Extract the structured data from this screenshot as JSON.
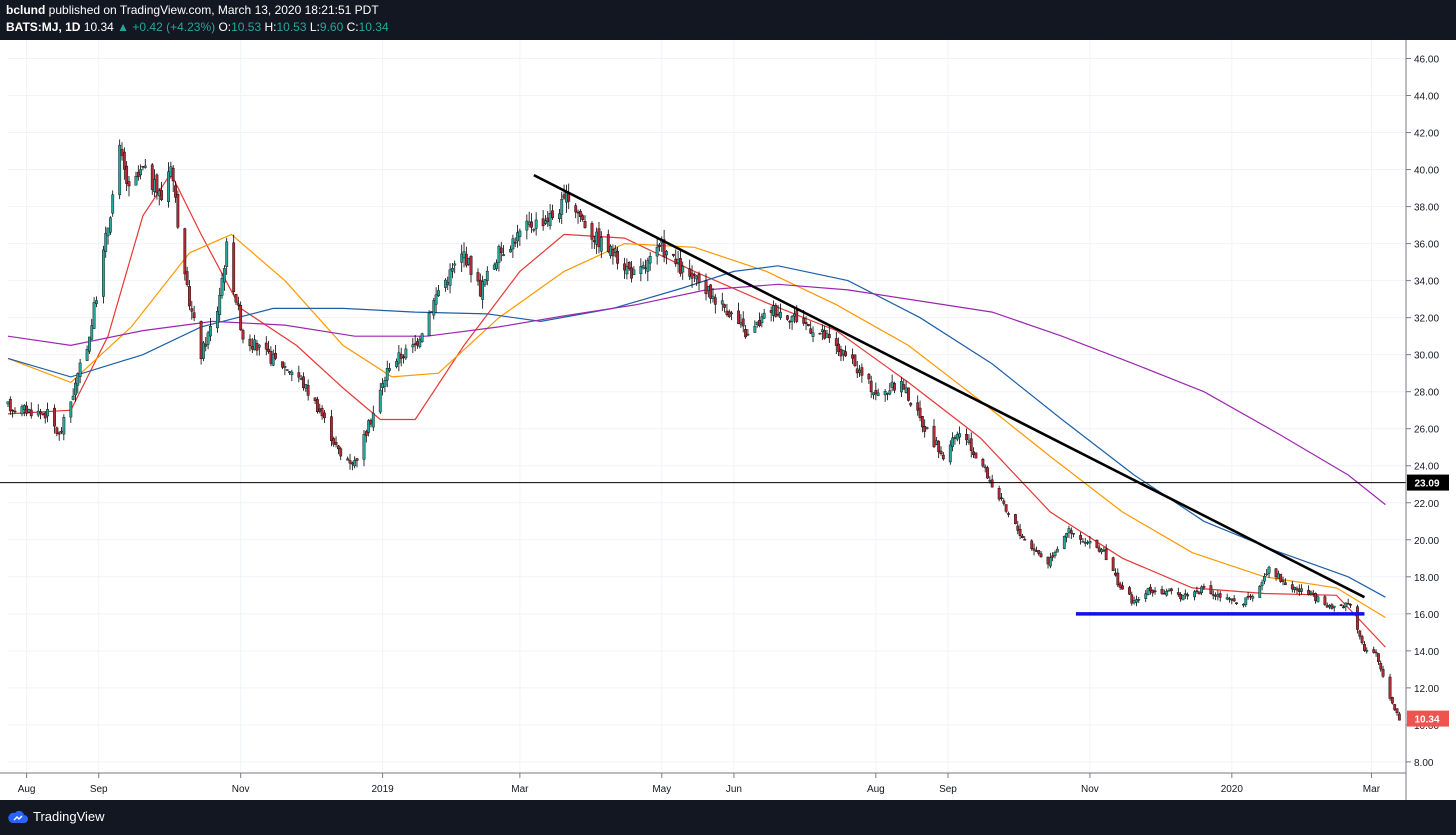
{
  "header": {
    "author": "bclund",
    "published_text": "published on TradingView.com, March 13, 2020 18:21:51 PDT",
    "symbol": "BATS:MJ, 1D",
    "last": "10.34",
    "change": "▲ +0.42 (+4.23%)",
    "o_label": "O:",
    "o_value": "10.53",
    "h_label": "H:",
    "h_value": "10.53",
    "l_label": "L:",
    "l_value": "9.60",
    "c_label": "C:",
    "c_value": "10.34"
  },
  "footer": {
    "brand": "TradingView",
    "logo_icon": "tradingview-cloud-icon"
  },
  "colors": {
    "up": "#26a69a",
    "down": "#ef5350",
    "candle_up": "#26a69a",
    "candle_down": "#b22833",
    "sma20": "#e53935",
    "sma50": "#ff9800",
    "sma100": "#1e5fa8",
    "sma200": "#9c27b0",
    "trendline": "#000000",
    "support": "#1010e8",
    "hline": "#000000",
    "price_badge": "#ef5350"
  },
  "chart_data": {
    "type": "candlestick",
    "symbol": "BATS:MJ",
    "interval": "1D",
    "ylim": [
      7.4,
      47.0
    ],
    "y_ticks": [
      "8.00",
      "10.00",
      "12.00",
      "14.00",
      "16.00",
      "18.00",
      "20.00",
      "22.00",
      "24.00",
      "26.00",
      "28.00",
      "30.00",
      "32.00",
      "34.00",
      "36.00",
      "38.00",
      "40.00",
      "42.00",
      "44.00",
      "46.00"
    ],
    "x_ticks": [
      "Aug",
      "Sep",
      "Nov",
      "2019",
      "Mar",
      "May",
      "Jun",
      "Aug",
      "Sep",
      "Nov",
      "2020",
      "Mar"
    ],
    "grid": true,
    "price_path": [
      [
        "2018-07-24",
        27.2
      ],
      [
        "2018-08-10",
        26.8
      ],
      [
        "2018-08-15",
        25.6
      ],
      [
        "2018-08-20",
        27.5
      ],
      [
        "2018-08-28",
        31.0
      ],
      [
        "2018-09-05",
        37.0
      ],
      [
        "2018-09-10",
        41.0
      ],
      [
        "2018-09-14",
        38.8
      ],
      [
        "2018-09-20",
        40.0
      ],
      [
        "2018-09-28",
        38.5
      ],
      [
        "2018-10-02",
        40.5
      ],
      [
        "2018-10-08",
        34.0
      ],
      [
        "2018-10-15",
        30.0
      ],
      [
        "2018-10-22",
        32.5
      ],
      [
        "2018-10-26",
        35.8
      ],
      [
        "2018-11-02",
        31.0
      ],
      [
        "2018-11-12",
        30.0
      ],
      [
        "2018-11-25",
        29.0
      ],
      [
        "2018-12-05",
        27.0
      ],
      [
        "2018-12-14",
        24.5
      ],
      [
        "2018-12-20",
        24.2
      ],
      [
        "2018-12-27",
        26.5
      ],
      [
        "2019-01-04",
        29.5
      ],
      [
        "2019-01-15",
        30.5
      ],
      [
        "2019-01-25",
        33.5
      ],
      [
        "2019-02-05",
        35.5
      ],
      [
        "2019-02-12",
        33.5
      ],
      [
        "2019-02-20",
        35.5
      ],
      [
        "2019-03-05",
        37.0
      ],
      [
        "2019-03-15",
        37.5
      ],
      [
        "2019-03-22",
        38.5
      ],
      [
        "2019-04-01",
        36.5
      ],
      [
        "2019-04-10",
        35.5
      ],
      [
        "2019-04-20",
        34.2
      ],
      [
        "2019-05-01",
        35.8
      ],
      [
        "2019-05-10",
        34.5
      ],
      [
        "2019-05-20",
        33.5
      ],
      [
        "2019-05-29",
        32.5
      ],
      [
        "2019-06-07",
        31.0
      ],
      [
        "2019-06-17",
        32.5
      ],
      [
        "2019-06-28",
        32.0
      ],
      [
        "2019-07-10",
        31.0
      ],
      [
        "2019-07-22",
        29.5
      ],
      [
        "2019-08-02",
        27.8
      ],
      [
        "2019-08-12",
        28.5
      ],
      [
        "2019-08-20",
        26.5
      ],
      [
        "2019-08-30",
        24.5
      ],
      [
        "2019-09-06",
        25.8
      ],
      [
        "2019-09-16",
        24.0
      ],
      [
        "2019-09-26",
        21.5
      ],
      [
        "2019-10-04",
        20.0
      ],
      [
        "2019-10-14",
        18.8
      ],
      [
        "2019-10-22",
        20.5
      ],
      [
        "2019-10-30",
        19.8
      ],
      [
        "2019-11-06",
        19.5
      ],
      [
        "2019-11-14",
        17.5
      ],
      [
        "2019-11-20",
        16.6
      ],
      [
        "2019-11-27",
        17.3
      ],
      [
        "2019-12-10",
        17.0
      ],
      [
        "2019-12-20",
        17.3
      ],
      [
        "2020-01-02",
        16.6
      ],
      [
        "2020-01-10",
        16.8
      ],
      [
        "2020-01-17",
        18.6
      ],
      [
        "2020-01-24",
        17.6
      ],
      [
        "2020-02-04",
        17.0
      ],
      [
        "2020-02-12",
        16.3
      ],
      [
        "2020-02-21",
        16.6
      ],
      [
        "2020-02-27",
        14.0
      ],
      [
        "2020-03-03",
        13.8
      ],
      [
        "2020-03-09",
        11.5
      ],
      [
        "2020-03-13",
        10.34
      ]
    ],
    "moving_averages": [
      {
        "color": "#e53935",
        "points": [
          [
            "2018-07-24",
            26.8
          ],
          [
            "2018-08-20",
            27.0
          ],
          [
            "2018-09-05",
            31.0
          ],
          [
            "2018-09-20",
            37.5
          ],
          [
            "2018-10-02",
            39.8
          ],
          [
            "2018-10-15",
            36.5
          ],
          [
            "2018-11-01",
            32.5
          ],
          [
            "2018-11-25",
            30.5
          ],
          [
            "2018-12-15",
            28.2
          ],
          [
            "2018-12-31",
            26.5
          ],
          [
            "2019-01-15",
            26.5
          ],
          [
            "2019-02-05",
            30.5
          ],
          [
            "2019-03-01",
            34.5
          ],
          [
            "2019-03-20",
            36.5
          ],
          [
            "2019-04-15",
            36.3
          ],
          [
            "2019-05-15",
            34.5
          ],
          [
            "2019-06-15",
            32.8
          ],
          [
            "2019-07-15",
            31.3
          ],
          [
            "2019-08-15",
            28.5
          ],
          [
            "2019-09-15",
            25.5
          ],
          [
            "2019-10-15",
            21.5
          ],
          [
            "2019-11-15",
            19.0
          ],
          [
            "2019-12-15",
            17.4
          ],
          [
            "2020-01-15",
            17.1
          ],
          [
            "2020-02-15",
            17.0
          ],
          [
            "2020-03-07",
            14.2
          ]
        ]
      },
      {
        "color": "#ff9800",
        "points": [
          [
            "2018-07-24",
            29.8
          ],
          [
            "2018-08-20",
            28.5
          ],
          [
            "2018-09-15",
            31.5
          ],
          [
            "2018-10-10",
            35.5
          ],
          [
            "2018-10-28",
            36.5
          ],
          [
            "2018-11-20",
            34.0
          ],
          [
            "2018-12-15",
            30.5
          ],
          [
            "2019-01-05",
            28.8
          ],
          [
            "2019-01-25",
            29.0
          ],
          [
            "2019-02-20",
            32.0
          ],
          [
            "2019-03-20",
            34.5
          ],
          [
            "2019-04-15",
            36.0
          ],
          [
            "2019-05-15",
            35.8
          ],
          [
            "2019-06-15",
            34.5
          ],
          [
            "2019-07-15",
            32.7
          ],
          [
            "2019-08-15",
            30.5
          ],
          [
            "2019-09-15",
            27.5
          ],
          [
            "2019-10-15",
            24.5
          ],
          [
            "2019-11-15",
            21.5
          ],
          [
            "2019-12-15",
            19.3
          ],
          [
            "2020-01-15",
            18.0
          ],
          [
            "2020-02-15",
            17.4
          ],
          [
            "2020-03-07",
            15.8
          ]
        ]
      },
      {
        "color": "#1e5fa8",
        "points": [
          [
            "2018-07-24",
            29.8
          ],
          [
            "2018-08-20",
            28.8
          ],
          [
            "2018-09-20",
            30.0
          ],
          [
            "2018-10-15",
            31.5
          ],
          [
            "2018-11-15",
            32.5
          ],
          [
            "2018-12-15",
            32.5
          ],
          [
            "2019-01-15",
            32.3
          ],
          [
            "2019-02-15",
            32.2
          ],
          [
            "2019-03-10",
            31.8
          ],
          [
            "2019-04-10",
            32.5
          ],
          [
            "2019-05-10",
            33.6
          ],
          [
            "2019-06-01",
            34.5
          ],
          [
            "2019-06-20",
            34.8
          ],
          [
            "2019-07-20",
            34.0
          ],
          [
            "2019-08-20",
            32.0
          ],
          [
            "2019-09-20",
            29.5
          ],
          [
            "2019-10-20",
            26.5
          ],
          [
            "2019-11-20",
            23.5
          ],
          [
            "2019-12-20",
            21.0
          ],
          [
            "2020-01-20",
            19.4
          ],
          [
            "2020-02-20",
            18.0
          ],
          [
            "2020-03-07",
            16.9
          ]
        ]
      },
      {
        "color": "#9c27b0",
        "points": [
          [
            "2018-07-24",
            31.0
          ],
          [
            "2018-08-20",
            30.5
          ],
          [
            "2018-09-20",
            31.3
          ],
          [
            "2018-10-20",
            31.8
          ],
          [
            "2018-11-20",
            31.6
          ],
          [
            "2018-12-20",
            31.0
          ],
          [
            "2019-01-20",
            31.0
          ],
          [
            "2019-02-20",
            31.5
          ],
          [
            "2019-03-20",
            32.1
          ],
          [
            "2019-04-20",
            32.7
          ],
          [
            "2019-05-20",
            33.5
          ],
          [
            "2019-06-20",
            33.8
          ],
          [
            "2019-07-20",
            33.5
          ],
          [
            "2019-08-20",
            32.9
          ],
          [
            "2019-09-20",
            32.3
          ],
          [
            "2019-10-20",
            31.0
          ],
          [
            "2019-11-20",
            29.5
          ],
          [
            "2019-12-20",
            28.0
          ],
          [
            "2020-01-20",
            25.8
          ],
          [
            "2020-02-20",
            23.5
          ],
          [
            "2020-03-07",
            21.9
          ]
        ]
      }
    ],
    "trendline": [
      [
        "2019-03-07",
        39.7
      ],
      [
        "2020-02-27",
        16.9
      ]
    ],
    "support_line": {
      "from": "2019-10-26",
      "to": "2020-02-27",
      "value": 16.0
    },
    "horizontal_line": {
      "value": 23.09,
      "label": "23.09"
    },
    "last_price": {
      "value": 10.34,
      "label": "10.34"
    }
  }
}
